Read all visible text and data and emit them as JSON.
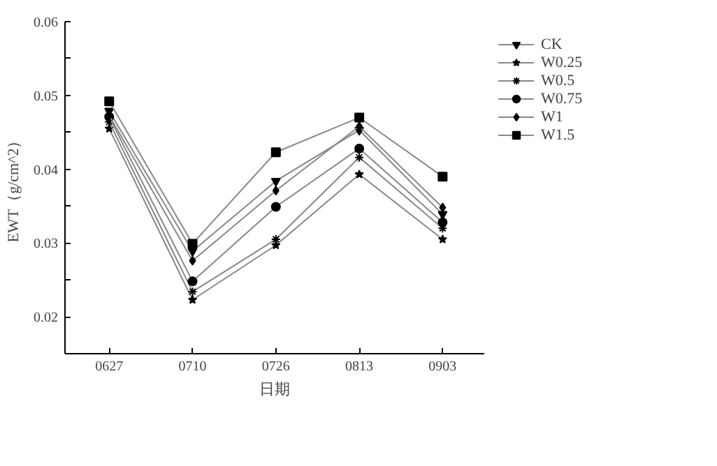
{
  "chart_data": {
    "type": "line",
    "xlabel": "日期",
    "ylabel": "EWT（g/cm^2）",
    "categories": [
      "0627",
      "0710",
      "0726",
      "0813",
      "0903"
    ],
    "ylim": [
      0.015,
      0.06
    ],
    "yticks": [
      {
        "value": 0.02,
        "label": "0.02"
      },
      {
        "value": 0.025,
        "label": null
      },
      {
        "value": 0.03,
        "label": "0.03"
      },
      {
        "value": 0.035,
        "label": null
      },
      {
        "value": 0.04,
        "label": "0.04"
      },
      {
        "value": 0.045,
        "label": null
      },
      {
        "value": 0.05,
        "label": "0.05"
      },
      {
        "value": 0.055,
        "label": null
      },
      {
        "value": 0.06,
        "label": "0.06"
      }
    ],
    "grid": false,
    "legend": "top right",
    "line_style": "solid",
    "series": [
      {
        "name": "CK",
        "color": "#000000",
        "marker": "triangle",
        "values": [
          0.0479,
          0.0289,
          0.0384,
          0.0453,
          0.0339
        ]
      },
      {
        "name": "W0.25",
        "color": "#000000",
        "marker": "star",
        "values": [
          0.0455,
          0.0223,
          0.0297,
          0.0393,
          0.0305
        ]
      },
      {
        "name": "W0.5",
        "color": "#000000",
        "marker": "cross",
        "values": [
          0.0464,
          0.0234,
          0.0305,
          0.0416,
          0.032
        ]
      },
      {
        "name": "W0.75",
        "color": "#000000",
        "marker": "circle",
        "values": [
          0.0471,
          0.0248,
          0.0349,
          0.0428,
          0.0328
        ]
      },
      {
        "name": "W1",
        "color": "#000000",
        "marker": "diamond",
        "values": [
          0.0473,
          0.0276,
          0.0371,
          0.0458,
          0.0348
        ]
      },
      {
        "name": "W1.5",
        "color": "#000000",
        "marker": "square",
        "values": [
          0.0492,
          0.0299,
          0.0423,
          0.047,
          0.039
        ]
      }
    ]
  }
}
